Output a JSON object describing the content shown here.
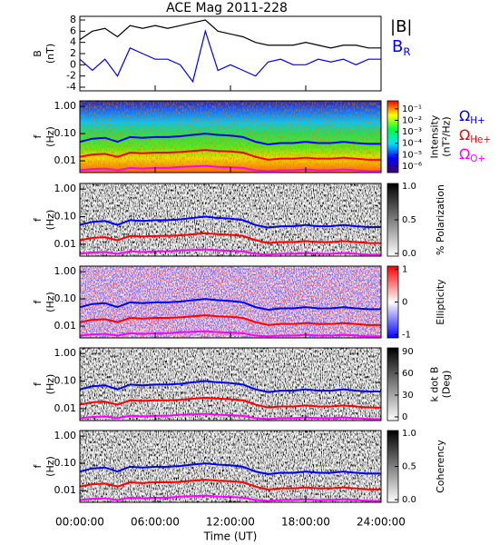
{
  "title": "ACE Mag 2011-228",
  "time_axis": {
    "x": [
      0,
      1,
      2,
      3,
      4,
      5,
      6,
      7,
      8,
      9,
      10,
      11,
      12,
      13,
      14,
      15,
      16,
      17,
      18,
      19,
      20,
      21,
      22,
      23,
      24
    ],
    "xlim": [
      0,
      24
    ],
    "xticks": [
      {
        "value": 0,
        "label": "00:00:00"
      },
      {
        "value": 6,
        "label": "06:00:00"
      },
      {
        "value": 12,
        "label": "12:00:00"
      },
      {
        "value": 18,
        "label": "18:00:00"
      },
      {
        "value": 24,
        "label": "24:00:00"
      }
    ],
    "xlabel": "Time (UT)"
  },
  "gyrofrequencies": [
    {
      "symbol": "Ω",
      "subscript": "H+",
      "color": "#0000ff",
      "values": [
        0.05,
        0.065,
        0.07,
        0.05,
        0.075,
        0.07,
        0.075,
        0.075,
        0.08,
        0.09,
        0.1,
        0.09,
        0.085,
        0.075,
        0.05,
        0.04,
        0.045,
        0.045,
        0.05,
        0.045,
        0.045,
        0.05,
        0.045,
        0.042,
        0.042
      ]
    },
    {
      "symbol": "Ω",
      "subscript": "He+",
      "color": "#ff0000",
      "values": [
        0.014,
        0.017,
        0.018,
        0.014,
        0.02,
        0.019,
        0.02,
        0.02,
        0.021,
        0.023,
        0.025,
        0.023,
        0.022,
        0.02,
        0.014,
        0.011,
        0.012,
        0.012,
        0.013,
        0.012,
        0.012,
        0.013,
        0.012,
        0.011,
        0.011
      ]
    },
    {
      "symbol": "Ω",
      "subscript": "O+",
      "color": "#ff00ff",
      "values": [
        0.0045,
        0.005,
        0.0052,
        0.0045,
        0.0055,
        0.0052,
        0.0055,
        0.0055,
        0.006,
        0.0062,
        0.0065,
        0.006,
        0.0058,
        0.0055,
        0.0045,
        0.0042,
        0.0045,
        0.0045,
        0.0048,
        0.0045,
        0.0045,
        0.0048,
        0.0045,
        0.0042,
        0.0042
      ]
    }
  ],
  "chart_data": [
    {
      "type": "line",
      "ylabel": [
        "B",
        "(nT)"
      ],
      "ylim": [
        -4.65,
        8.65
      ],
      "yticks": [
        -4,
        -2,
        0,
        2,
        4,
        6,
        8
      ],
      "series": [
        {
          "name": "|B|",
          "color": "#000000",
          "values": [
            4.5,
            6,
            6.5,
            5,
            7,
            6.5,
            7,
            6.5,
            7,
            7.5,
            8,
            6,
            5.5,
            5,
            4,
            3.5,
            3.5,
            3.5,
            4,
            3.5,
            3,
            3.5,
            3.5,
            3,
            3
          ]
        },
        {
          "symbol": "B",
          "subscript": "R",
          "color": "#0000ff",
          "values": [
            1,
            -1,
            1,
            -2,
            3,
            2,
            1,
            1,
            0,
            -3,
            6,
            -1,
            0,
            -1,
            -2,
            0.5,
            1,
            0,
            0,
            1,
            0.5,
            1,
            0,
            1,
            1
          ]
        }
      ]
    },
    {
      "type": "spectrogram",
      "ylabel": [
        "f",
        "(Hz)"
      ],
      "log_y": true,
      "ylim": [
        0.0037,
        1.6
      ],
      "yticks": [
        {
          "value": 1,
          "label": "1.00"
        },
        {
          "value": 0.1,
          "label": "0.10"
        },
        {
          "value": 0.01,
          "label": "0.01"
        }
      ],
      "colormap": "rainbow",
      "colorbar": {
        "label": [
          "Intensity",
          "(nT²/Hz)"
        ],
        "log": true,
        "lim": [
          2.8e-07,
          0.5
        ],
        "ticks": [
          {
            "value": 0.1,
            "label": "10⁻¹"
          },
          {
            "value": 0.01,
            "label": "10⁻²"
          },
          {
            "value": 0.001,
            "label": "10⁻³"
          },
          {
            "value": 0.0001,
            "label": "10⁻⁴"
          },
          {
            "value": 1e-05,
            "label": "10⁻⁵"
          },
          {
            "value": 1e-06,
            "label": "10⁻⁶"
          }
        ]
      }
    },
    {
      "type": "spectrogram",
      "ylabel": [
        "f",
        "(Hz)"
      ],
      "log_y": true,
      "ylim": [
        0.0037,
        1.6
      ],
      "yticks": [
        {
          "value": 1,
          "label": "1.00"
        },
        {
          "value": 0.1,
          "label": "0.10"
        },
        {
          "value": 0.01,
          "label": "0.01"
        }
      ],
      "colormap": "gray",
      "colorbar": {
        "label": [
          "% Polarization"
        ],
        "lim": [
          -0.04,
          1.04
        ],
        "ticks": [
          {
            "value": 0,
            "label": "0.0"
          },
          {
            "value": 0.5,
            "label": "0.5"
          },
          {
            "value": 1,
            "label": "1.0"
          }
        ]
      }
    },
    {
      "type": "spectrogram",
      "ylabel": [
        "f",
        "(Hz)"
      ],
      "log_y": true,
      "ylim": [
        0.0037,
        1.6
      ],
      "yticks": [
        {
          "value": 1,
          "label": "1.00"
        },
        {
          "value": 0.1,
          "label": "0.10"
        },
        {
          "value": 0.01,
          "label": "0.01"
        }
      ],
      "colormap": "bwr",
      "colorbar": {
        "label": [
          "Ellipticity"
        ],
        "lim": [
          -1.1,
          1.1
        ],
        "ticks": [
          1,
          0,
          -1
        ]
      }
    },
    {
      "type": "spectrogram",
      "ylabel": [
        "f",
        "(Hz)"
      ],
      "log_y": true,
      "ylim": [
        0.0037,
        1.6
      ],
      "yticks": [
        {
          "value": 1,
          "label": "1.00"
        },
        {
          "value": 0.1,
          "label": "0.10"
        },
        {
          "value": 0.01,
          "label": "0.01"
        }
      ],
      "colormap": "gray",
      "colorbar": {
        "label": [
          "k dot B",
          "(Deg)"
        ],
        "lim": [
          -5,
          95
        ],
        "ticks": [
          90,
          60,
          30,
          0
        ]
      }
    },
    {
      "type": "spectrogram",
      "ylabel": [
        "f",
        "(Hz)"
      ],
      "log_y": true,
      "ylim": [
        0.0037,
        1.6
      ],
      "yticks": [
        {
          "value": 1,
          "label": "1.00"
        },
        {
          "value": 0.1,
          "label": "0.10"
        },
        {
          "value": 0.01,
          "label": "0.01"
        }
      ],
      "colormap": "gray",
      "colorbar": {
        "label": [
          "Coherency"
        ],
        "lim": [
          -0.04,
          1.04
        ],
        "ticks": [
          {
            "value": 0,
            "label": "0.0"
          },
          {
            "value": 0.5,
            "label": "0.5"
          },
          {
            "value": 1,
            "label": "1.0"
          }
        ]
      }
    }
  ]
}
